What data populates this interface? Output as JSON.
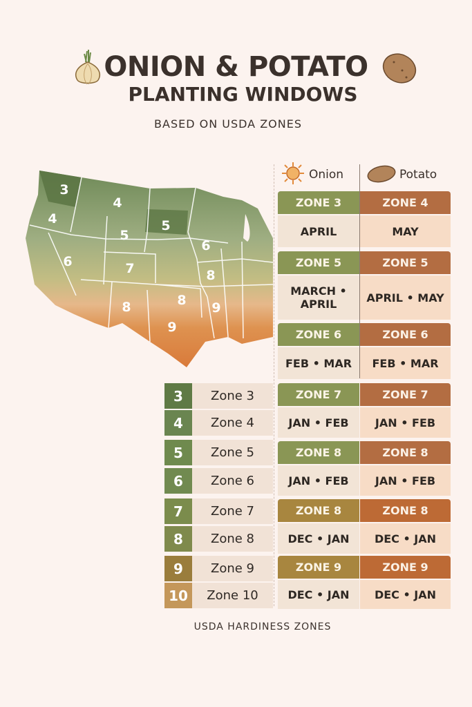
{
  "title": {
    "line1": "ONION & POTATO",
    "line2": "PLANTING WINDOWS",
    "subtitle": "BASED ON USDA ZONES"
  },
  "icons": {
    "title_left": "onion-icon",
    "title_right": "potato-icon",
    "onion_header": "sun-onion-icon",
    "potato_header": "potato-icon"
  },
  "columns": {
    "onion": "Onion",
    "potato": "Potato"
  },
  "map": {
    "zone_labels": [
      "3",
      "4",
      "4",
      "5",
      "5",
      "6",
      "6",
      "7",
      "8",
      "8",
      "8",
      "9",
      "9"
    ]
  },
  "windows": [
    {
      "onion_zone": "ZONE 3",
      "onion": "APRIL",
      "potato_zone": "ZONE 4",
      "potato": "MAY"
    },
    {
      "onion_zone": "ZONE 5",
      "onion": "MARCH • APRIL",
      "potato_zone": "ZONE 5",
      "potato": "APRIL • MAY"
    },
    {
      "onion_zone": "ZONE 6",
      "onion": "FEB • MAR",
      "potato_zone": "ZONE 6",
      "potato": "FEB • MAR"
    },
    {
      "onion_zone": "ZONE 7",
      "onion": "JAN • FEB",
      "potato_zone": "ZONE 7",
      "potato": "JAN • FEB"
    },
    {
      "onion_zone": "ZONE 8",
      "onion": "JAN • FEB",
      "potato_zone": "ZONE 8",
      "potato": "JAN • FEB"
    },
    {
      "onion_zone": "ZONE 8",
      "onion": "DEC • JAN",
      "potato_zone": "ZONE 8",
      "potato": "DEC • JAN"
    },
    {
      "onion_zone": "ZONE 9",
      "onion": "DEC • JAN",
      "potato_zone": "ZONE 9",
      "potato": "DEC • JAN"
    }
  ],
  "legend": [
    {
      "num": "3",
      "label": "Zone 3",
      "color": "#5f7a45"
    },
    {
      "num": "4",
      "label": "Zone 4",
      "color": "#6a8550"
    },
    {
      "num": "5",
      "label": "Zone 5",
      "color": "#6f8a4e"
    },
    {
      "num": "6",
      "label": "Zone 6",
      "color": "#718a50"
    },
    {
      "num": "7",
      "label": "Zone 7",
      "color": "#7b8c4c"
    },
    {
      "num": "8",
      "label": "Zone 8",
      "color": "#7f8a4c"
    },
    {
      "num": "9",
      "label": "Zone 9",
      "color": "#9a7d3c"
    },
    {
      "num": "10",
      "label": "Zone 10",
      "color": "#c4975a"
    }
  ],
  "footer": "USDA HARDINESS ZONES"
}
